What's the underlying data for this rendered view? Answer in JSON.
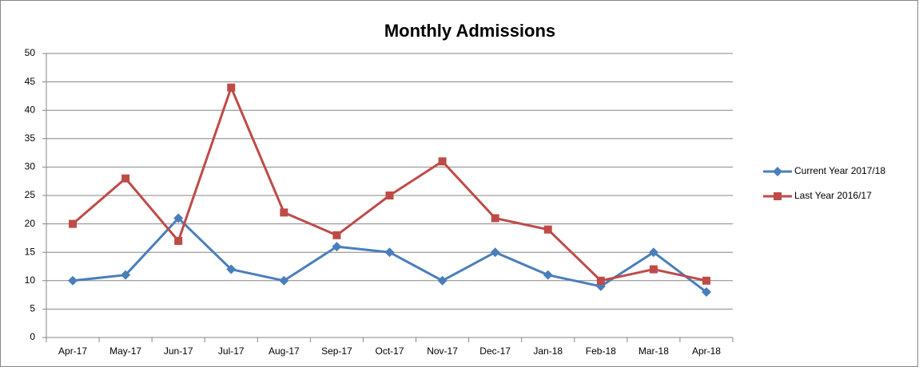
{
  "chart_data": {
    "type": "line",
    "title": "Monthly Admissions",
    "categories": [
      "Apr-17",
      "May-17",
      "Jun-17",
      "Jul-17",
      "Aug-17",
      "Sep-17",
      "Oct-17",
      "Nov-17",
      "Dec-17",
      "Jan-18",
      "Feb-18",
      "Mar-18",
      "Apr-18"
    ],
    "series": [
      {
        "name": "Current Year 2017/18",
        "color": "#4a7ebb",
        "marker": "diamond",
        "values": [
          10,
          11,
          21,
          12,
          10,
          16,
          15,
          10,
          15,
          11,
          9,
          15,
          8
        ]
      },
      {
        "name": "Last Year 2016/17",
        "color": "#be4b48",
        "marker": "square",
        "values": [
          20,
          28,
          17,
          44,
          22,
          18,
          25,
          31,
          21,
          19,
          10,
          12,
          10
        ]
      }
    ],
    "ylim": [
      0,
      50
    ],
    "yticks": [
      0,
      5,
      10,
      15,
      20,
      25,
      30,
      35,
      40,
      45,
      50
    ],
    "grid": true,
    "legend": "right"
  }
}
